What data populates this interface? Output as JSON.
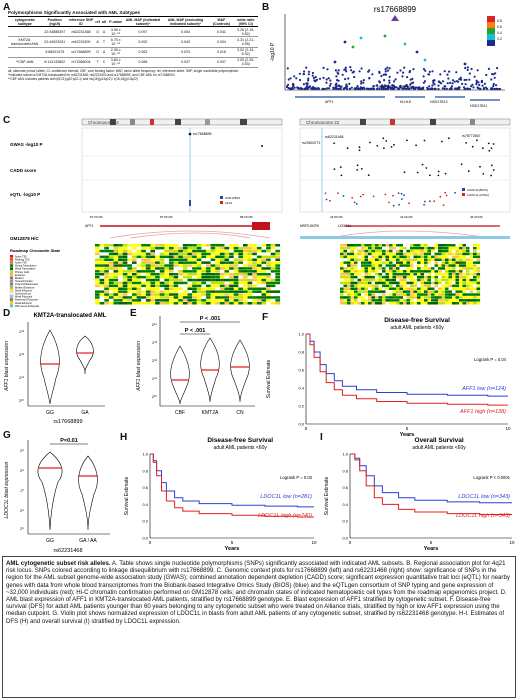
{
  "panels": {
    "A": "A",
    "B": "B",
    "C": "C",
    "D": "D",
    "E": "E",
    "F": "F",
    "G": "G",
    "H": "H",
    "I": "I"
  },
  "tableA": {
    "title": "Polymorphisms Significantly Associated with AML Subtypes",
    "headers": [
      "cytogenetic subtype",
      "Position (hg19)",
      "reference SNP ID",
      "ref",
      "alt",
      "P-value",
      "AML MAF (indicated subset)*",
      "AML MAF (excluding indicated subset)*",
      "MAF (Controls)",
      "odds ratio (95% CI)"
    ],
    "rows": [
      [
        "",
        "22:44888397",
        "rs62231468",
        "G",
        "A",
        "4.95 x 10⁻⁰⁶",
        "0.097",
        "0.054",
        "0.041",
        "3.25 (2.19-4.82)"
      ],
      [
        "KMT2A-translocated AML",
        "22:44923281",
        "rs62231500",
        "A",
        "T",
        "5.75 x 10⁻⁰⁶",
        "0.092",
        "0.043",
        "0.034",
        "3.31 (2.21-4.95)"
      ],
      [
        "",
        "4:88001475",
        "rs17668899",
        "G",
        "A",
        "2.35 x 10⁻⁰⁶",
        "0.063",
        "0.023",
        "0.018",
        "3.92 (2.43-6.32)"
      ],
      [
        "**CBF-AML",
        "6:114133802",
        "rs71568004",
        "T",
        "C",
        "3.84 x 10⁻⁰⁶",
        "0.088",
        "0.037",
        "0.037",
        "3.05 (2.05-4.53)"
      ]
    ],
    "footnotes": [
      "alt, alternate (minor) allele; CI, confidence interval; CBF, core binding factor; MAF, minor allele frequency; ref, reference allele; SNP, single nucleotide polymorphism",
      "*Indicated subset is KMT2A-translocated for rs62231468, rs62231500 and rs17668899, and CBF-AML for rs71568004",
      "**CBF-AML includes patients with t(8;21)(q22;q22.1) and inv(16)(p13q22) / t(16;16)(p13q22)"
    ]
  },
  "panelB": {
    "snp": "rs17668899",
    "ylabel": "-log10 P",
    "xlabel": "chr4: 87.8 - 88.2 Mb",
    "legend": [
      "0.8",
      "0.6",
      "0.4",
      "0.2"
    ],
    "genes": [
      "AFF1",
      "KLHL8",
      "HSD17B13",
      "HSD17B11"
    ],
    "colors": {
      "purple": "#6a3ea1",
      "navy": "#1c2a8a",
      "green": "#2ca02c",
      "orange": "#ff7f0e",
      "red": "#d62728",
      "cyan": "#17becf"
    }
  },
  "panelC": {
    "chrom_left": "Chromosome 4",
    "chrom_right": "Chromosome 22",
    "tracks": [
      "GWAS -log10 P",
      "CADD score",
      "eQTL -log10 P"
    ],
    "snps_left": [
      "rs17668899"
    ],
    "snps_right": [
      "rs62231468",
      "rs20804771",
      "rs78772667"
    ],
    "eqtl_left_legend": [
      "HSD17B13",
      "AFF1"
    ],
    "eqtl_right_legend": [
      "LDOC1L(BIOS)",
      "LDOC1L (GTEx)"
    ],
    "left_ticks": [
      "87.60 Mb",
      "87.80 Mb",
      "88.00 Mb"
    ],
    "right_ticks": [
      "44.80 Mb",
      "44.90 Mb",
      "45.00 Mb"
    ],
    "genes_left": [
      "AFF1"
    ],
    "genes_right": [
      "MRPS18CP6",
      "LDOC1L"
    ],
    "hic_label": "GM12878 HiC",
    "roadmap_title": "Roadmap Chromatin State",
    "states": [
      "Active TSS",
      "Flanking TSS",
      "Active TSS",
      "Strong Transcription",
      "Weak Transcription",
      "Primary Cells",
      "Enhancer",
      "Bivalent",
      "Heterochromatin",
      "Polycomb/Repressed",
      "Bivalent Enhancer",
      "Weak Enhancer",
      "Quiescent/Low",
      "Weak Polycomb",
      "Repressed Polycomb",
      "Weak Enhancer",
      "ZNF Genes & Repeats"
    ]
  },
  "panelD": {
    "title": "KMT2A-translocated AML",
    "ylabel": "AFF1 blast expression",
    "xlabel": "rs17668899",
    "groups": [
      "GG",
      "GA"
    ],
    "yticks": [
      "2¹³",
      "2¹²",
      "2¹¹",
      "2¹⁰"
    ]
  },
  "panelE": {
    "ylabel": "AFF1 blast expression",
    "groups": [
      "CBF",
      "KMT2A",
      "CN"
    ],
    "p1": "P < .001",
    "p2": "P < .001",
    "yticks": [
      "2¹⁴",
      "2¹³",
      "2¹²",
      "2¹¹",
      "2¹⁰"
    ]
  },
  "panelF": {
    "title": "Disease-free Survival",
    "subtitle": "adult AML patients <60y",
    "logrank": "Logrank P = 0.04",
    "low": "AFF1 low (n=124)",
    "high": "AFF1 high (n=138)",
    "ylabel": "Survival Estimate",
    "xlabel": "Years",
    "xticks": [
      "0",
      "5",
      "10"
    ],
    "yticks": [
      "1.0",
      "0.8",
      "0.6",
      "0.4",
      "0.2",
      "0.0"
    ]
  },
  "panelG": {
    "p": "P=0.01",
    "ylabel": "LDOC1L blast expression",
    "xlabel": "rs62231468",
    "groups": [
      "GG",
      "GA / AA"
    ],
    "yticks": [
      "2⁹",
      "2⁸",
      "2⁷",
      "2⁶",
      "2⁵"
    ]
  },
  "panelH": {
    "title": "Disease-free Survival",
    "subtitle": "adult AML patients <60y",
    "logrank": "Logrank P = 0.03",
    "low": "LDOC1L low (n=281)",
    "high": "LDOC1L high (n=240)",
    "ylabel": "Survival Estimate",
    "xlabel": "Years",
    "xticks": [
      "0",
      "5",
      "10"
    ],
    "yticks": [
      "1.0",
      "0.8",
      "0.6",
      "0.4",
      "0.2",
      "0.0"
    ]
  },
  "panelI": {
    "title": "Overall Survival",
    "subtitle": "adult AML patients <60y",
    "logrank": "Logrank P < 0.0001",
    "low": "LDOC1L low (n=343)",
    "high": "LDOC1L high (n=343)",
    "ylabel": "Survival Estimate",
    "xlabel": "Years",
    "xticks": [
      "0",
      "5",
      "10"
    ],
    "yticks": [
      "1.0",
      "0.8",
      "0.6",
      "0.4",
      "0.2",
      "0.0"
    ]
  },
  "caption": {
    "bold_intro": "AML cytogenetic subset risk alleles.",
    "text": " A. Table shows single nucleotide polymorphisms (SNPs) significantly associated with indicated AML subsets. B. Regional association plot for 4q21 risk locus. SNPs colored according to linkage disequilibrium with rs17668899. C. Genomic context plots for rs17668899 (left) and rs62231468 (right) show: significance of SNPs in the region for the AML subset genome-wide association study (GWAS); combined annotation dependent depletion (CADD) score; significant expression quantitative trait loci (eQTL) for nearby genes with data from whole blood transcriptomes from the Biobank-based Integrative Omics Study (BIOS) (blue) and the eQTLgen consortium of SNP typing and gene expression of ~32,000 individuals (red); Hi-C chromatin confirmation performed on GM12878 cells; and chromatin states of indicated hematopoietic cell types from the roadmap epigenomics project. D. AML blast expression of AFF1 in KMT2A-translocated AML patients, stratified by rs17668899 genotype. E. Blast expression of AFF1 stratified by cytogenetic subset. F. Disease-free survival (DFS) for adult AML patients younger than 60 years belonging to any cytogenetic subset who were treated on Alliance trials, stratified by high or low AFF1 expression using the median cutpoint. G. Violin plot shows normalized expression of LDOC1L in blasts from adult AML patients of any cytogenetic subset, stratified by rs62231468 genotype. H-I. Estimates of DFS (H) and overall survival (I) stratified by LDOC1L expression."
  }
}
